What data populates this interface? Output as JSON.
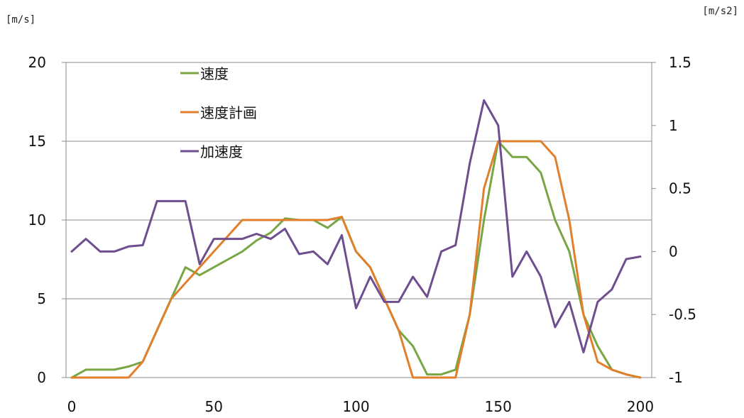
{
  "chart_data": {
    "type": "line",
    "title": "",
    "left_unit": "[m/s]",
    "right_unit": "[m/s2]",
    "x_ticks": [
      "0",
      "50",
      "100",
      "150",
      "200"
    ],
    "y_left_ticks": [
      "0",
      "5",
      "10",
      "15",
      "20"
    ],
    "y_right_ticks": [
      "-1",
      "-0.5",
      "0",
      "0.5",
      "1",
      "1.5"
    ],
    "xlim": [
      0,
      200
    ],
    "ylim_left": [
      0,
      20
    ],
    "ylim_right": [
      -1,
      1.5
    ],
    "grid": "horizontal",
    "legend_position": "top-left-inside",
    "series": [
      {
        "name": "速度",
        "axis": "left",
        "color": "#77a643",
        "x": [
          0,
          5,
          10,
          15,
          20,
          25,
          30,
          35,
          40,
          45,
          50,
          55,
          60,
          65,
          70,
          75,
          80,
          85,
          90,
          95,
          100,
          105,
          110,
          115,
          120,
          125,
          130,
          135,
          140,
          145,
          150,
          155,
          160,
          165,
          170,
          175,
          180,
          185,
          190,
          195,
          200
        ],
        "values": [
          0,
          0.5,
          0.5,
          0.5,
          0.7,
          1.0,
          3.0,
          5.0,
          7.0,
          6.5,
          7.0,
          7.5,
          8.0,
          8.7,
          9.2,
          10.1,
          10.0,
          10.0,
          9.5,
          10.2,
          8.0,
          7.0,
          5.0,
          3.0,
          2.0,
          0.2,
          0.2,
          0.5,
          4.0,
          10.0,
          15.0,
          14.0,
          14.0,
          13.0,
          10.0,
          8.0,
          4.0,
          2.0,
          0.5,
          0.2,
          0.0
        ]
      },
      {
        "name": "速度計画",
        "axis": "left",
        "color": "#e07f2c",
        "x": [
          0,
          5,
          10,
          15,
          20,
          25,
          30,
          35,
          40,
          45,
          50,
          55,
          60,
          65,
          70,
          75,
          80,
          85,
          90,
          95,
          100,
          105,
          110,
          115,
          120,
          125,
          130,
          135,
          140,
          145,
          150,
          155,
          160,
          165,
          170,
          175,
          180,
          185,
          190,
          195,
          200
        ],
        "values": [
          0,
          0,
          0,
          0,
          0,
          1.0,
          3.0,
          5.0,
          6.0,
          7.0,
          8.0,
          9.0,
          10.0,
          10.0,
          10.0,
          10.0,
          10.0,
          10.0,
          10.0,
          10.2,
          8.0,
          7.0,
          5.0,
          3.0,
          0,
          0,
          0,
          0,
          4.0,
          12.0,
          15.0,
          15.0,
          15.0,
          15.0,
          14.0,
          10.0,
          4.0,
          1.0,
          0.5,
          0.2,
          0.0
        ]
      },
      {
        "name": "加速度",
        "axis": "right",
        "color": "#6e4e8f",
        "x": [
          0,
          5,
          10,
          15,
          20,
          25,
          30,
          35,
          40,
          45,
          50,
          55,
          60,
          65,
          70,
          75,
          80,
          85,
          90,
          95,
          100,
          105,
          110,
          115,
          120,
          125,
          130,
          135,
          140,
          145,
          150,
          155,
          160,
          165,
          170,
          175,
          180,
          185,
          190,
          195,
          200
        ],
        "values": [
          0.0,
          0.1,
          0.0,
          0.0,
          0.04,
          0.05,
          0.4,
          0.4,
          0.4,
          -0.1,
          0.1,
          0.1,
          0.1,
          0.14,
          0.1,
          0.18,
          -0.02,
          0.0,
          -0.1,
          0.13,
          -0.45,
          -0.2,
          -0.4,
          -0.4,
          -0.2,
          -0.36,
          0.0,
          0.05,
          0.7,
          1.2,
          1.0,
          -0.2,
          0.0,
          -0.2,
          -0.6,
          -0.4,
          -0.8,
          -0.4,
          -0.3,
          -0.06,
          -0.04
        ]
      }
    ]
  }
}
